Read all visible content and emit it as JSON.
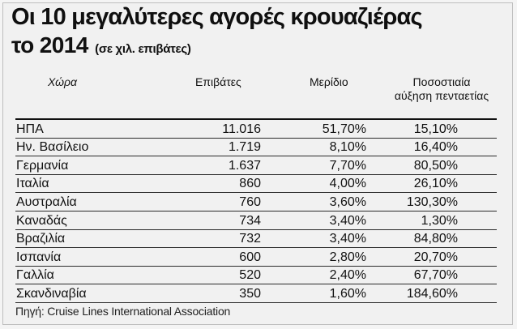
{
  "title_line1": "Οι 10 μεγαλύτερες αγορές κρουαζιέρας",
  "title_line2": "το 2014",
  "title_note": "(σε χιλ. επιβάτες)",
  "headers": {
    "country": "Χώρα",
    "passengers": "Επιβάτες",
    "share": "Μερίδιο",
    "growth_line1": "Ποσοστιαία",
    "growth_line2": "αύξηση πενταετίας"
  },
  "rows": [
    {
      "country": "ΗΠΑ",
      "passengers": "11.016",
      "share": "51,70%",
      "growth": "15,10%"
    },
    {
      "country": "Ην. Βασίλειο",
      "passengers": "1.719",
      "share": "8,10%",
      "growth": "16,40%"
    },
    {
      "country": "Γερμανία",
      "passengers": "1.637",
      "share": "7,70%",
      "growth": "80,50%"
    },
    {
      "country": "Ιταλία",
      "passengers": "860",
      "share": "4,00%",
      "growth": "26,10%"
    },
    {
      "country": "Αυστραλία",
      "passengers": "760",
      "share": "3,60%",
      "growth": "130,30%"
    },
    {
      "country": "Καναδάς",
      "passengers": "734",
      "share": "3,40%",
      "growth": "1,30%"
    },
    {
      "country": "Βραζιλία",
      "passengers": "732",
      "share": "3,40%",
      "growth": "84,80%"
    },
    {
      "country": "Ισπανία",
      "passengers": "600",
      "share": "2,80%",
      "growth": "20,70%"
    },
    {
      "country": "Γαλλία",
      "passengers": "520",
      "share": "2,40%",
      "growth": "67,70%"
    },
    {
      "country": "Σκανδιναβία",
      "passengers": "350",
      "share": "1,60%",
      "growth": "184,60%"
    }
  ],
  "source": "Πηγή: Cruise Lines International Association"
}
